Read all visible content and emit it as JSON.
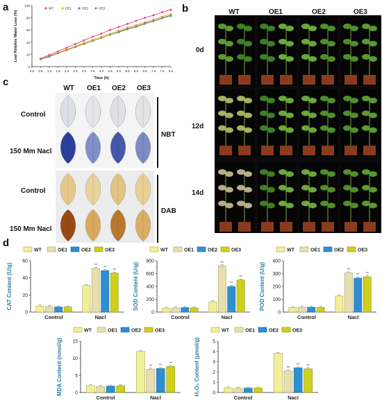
{
  "panels": {
    "a": "a",
    "b": "b",
    "c": "c",
    "d": "d"
  },
  "panel_b": {
    "columns": [
      "WT",
      "OE1",
      "OE2",
      "OE3"
    ],
    "rows": [
      "0d",
      "12d",
      "14d"
    ]
  },
  "panel_c": {
    "columns": [
      "WT",
      "OE1",
      "OE2",
      "OE3"
    ],
    "rows": [
      "Control",
      "150 Mm Nacl",
      "Control",
      "150 Mm Nacl"
    ],
    "groups": [
      "NBT",
      "DAB"
    ]
  },
  "colors": {
    "WT": "#f2ef9a",
    "OE1": "#e7dfae",
    "OE2": "#2f8fcf",
    "OE3": "#cfcf1c",
    "line_WT": "#e8368f",
    "line_OE1": "#f2a900",
    "line_OE2": "#7c6fd8",
    "line_OE3": "#7aa23c",
    "axis_label": "#2a7fa5"
  },
  "chart_data": [
    {
      "id": "a",
      "type": "line",
      "xlabel": "Time (h)",
      "ylabel": "Leaf Relative Water Loss (%)",
      "xlim": [
        0,
        8
      ],
      "ylim": [
        0,
        100
      ],
      "x_ticks": [
        "0.0",
        "0.5",
        "1.0",
        "1.5",
        "2.0",
        "2.5",
        "3.0",
        "3.5",
        "4.0",
        "4.5",
        "5.0",
        "5.5",
        "6.0",
        "6.5",
        "7.0",
        "7.5",
        "8.0"
      ],
      "y_ticks": [
        "0",
        "20",
        "40",
        "60",
        "80",
        "100"
      ],
      "x": [
        0.5,
        1.0,
        1.5,
        2.0,
        2.5,
        3.0,
        3.5,
        4.0,
        4.5,
        5.0,
        5.5,
        6.0,
        6.5,
        7.0,
        7.5,
        8.0
      ],
      "series": [
        {
          "name": "WT",
          "values": [
            13,
            19,
            25,
            31,
            37,
            43,
            49,
            54,
            60,
            65,
            70,
            75,
            80,
            84,
            89,
            93
          ]
        },
        {
          "name": "OE1",
          "values": [
            12,
            17,
            23,
            28,
            33,
            39,
            44,
            49,
            54,
            59,
            64,
            68,
            73,
            77,
            82,
            86
          ]
        },
        {
          "name": "OE2",
          "values": [
            12,
            17,
            22,
            27,
            32,
            37,
            42,
            47,
            52,
            57,
            62,
            66,
            71,
            75,
            80,
            84
          ]
        },
        {
          "name": "OE3",
          "values": [
            12,
            16,
            22,
            27,
            32,
            37,
            42,
            47,
            52,
            56,
            61,
            65,
            70,
            74,
            79,
            83
          ]
        }
      ]
    },
    {
      "id": "cat",
      "type": "bar",
      "legend": [
        "WT",
        "OE1",
        "OE2",
        "OE3"
      ],
      "categories": [
        "Control",
        "Nacl"
      ],
      "ylabel": "CAT Content (U/g)",
      "ylim": [
        0,
        60
      ],
      "y_ticks": [
        "0",
        "20",
        "40",
        "60"
      ],
      "series": [
        {
          "name": "WT",
          "values": [
            7,
            31
          ]
        },
        {
          "name": "OE1",
          "values": [
            6.5,
            51
          ]
        },
        {
          "name": "OE2",
          "values": [
            6,
            48.5
          ]
        },
        {
          "name": "OE3",
          "values": [
            6,
            45.5
          ]
        }
      ],
      "annotations": [
        "**",
        "**",
        "**"
      ]
    },
    {
      "id": "sod",
      "type": "bar",
      "legend": [
        "WT",
        "OE1",
        "OE2",
        "OE3"
      ],
      "categories": [
        "Control",
        "Nacl"
      ],
      "ylabel": "SOD Content (U/g)",
      "ylim": [
        0,
        800
      ],
      "y_ticks": [
        "0",
        "200",
        "400",
        "600",
        "800"
      ],
      "series": [
        {
          "name": "WT",
          "values": [
            60,
            160
          ]
        },
        {
          "name": "OE1",
          "values": [
            65,
            720
          ]
        },
        {
          "name": "OE2",
          "values": [
            70,
            400
          ]
        },
        {
          "name": "OE3",
          "values": [
            65,
            500
          ]
        }
      ],
      "annotations": [
        "**",
        "**",
        "**"
      ]
    },
    {
      "id": "pod",
      "type": "bar",
      "legend": [
        "WT",
        "OE1",
        "OE2",
        "OE3"
      ],
      "categories": [
        "Control",
        "Nacl"
      ],
      "ylabel": "POD Content (U/g)",
      "ylim": [
        0,
        400
      ],
      "y_ticks": [
        "0",
        "100",
        "200",
        "300",
        "400"
      ],
      "series": [
        {
          "name": "WT",
          "values": [
            35,
            125
          ]
        },
        {
          "name": "OE1",
          "values": [
            37,
            305
          ]
        },
        {
          "name": "OE2",
          "values": [
            38,
            265
          ]
        },
        {
          "name": "OE3",
          "values": [
            36,
            275
          ]
        }
      ],
      "annotations": [
        "**",
        "**",
        "**"
      ]
    },
    {
      "id": "mda",
      "type": "bar",
      "legend": [
        "WT",
        "OE1",
        "OE2",
        "OE3"
      ],
      "categories": [
        "Control",
        "Nacl"
      ],
      "ylabel": "MDA Content (nmol/g)",
      "ylim": [
        0,
        15
      ],
      "y_ticks": [
        "0",
        "5",
        "10",
        "15"
      ],
      "series": [
        {
          "name": "WT",
          "values": [
            2.0,
            12.0
          ]
        },
        {
          "name": "OE1",
          "values": [
            1.8,
            6.8
          ]
        },
        {
          "name": "OE2",
          "values": [
            1.9,
            7.0
          ]
        },
        {
          "name": "OE3",
          "values": [
            2.0,
            7.6
          ]
        }
      ],
      "annotations": [
        "**",
        "**",
        "**"
      ]
    },
    {
      "id": "h2o2",
      "type": "bar",
      "legend": [
        "WT",
        "OE1",
        "OE2",
        "OE3"
      ],
      "categories": [
        "Control",
        "Nacl"
      ],
      "ylabel": "H₂O₂ Content (μmol/g)",
      "ylim": [
        0,
        5
      ],
      "y_ticks": [
        "0",
        "1",
        "2",
        "3",
        "4",
        "5"
      ],
      "series": [
        {
          "name": "WT",
          "values": [
            0.45,
            3.8
          ]
        },
        {
          "name": "OE1",
          "values": [
            0.42,
            2.1
          ]
        },
        {
          "name": "OE2",
          "values": [
            0.43,
            2.4
          ]
        },
        {
          "name": "OE3",
          "values": [
            0.44,
            2.3
          ]
        }
      ],
      "annotations": [
        "**",
        "**",
        "**"
      ]
    }
  ]
}
